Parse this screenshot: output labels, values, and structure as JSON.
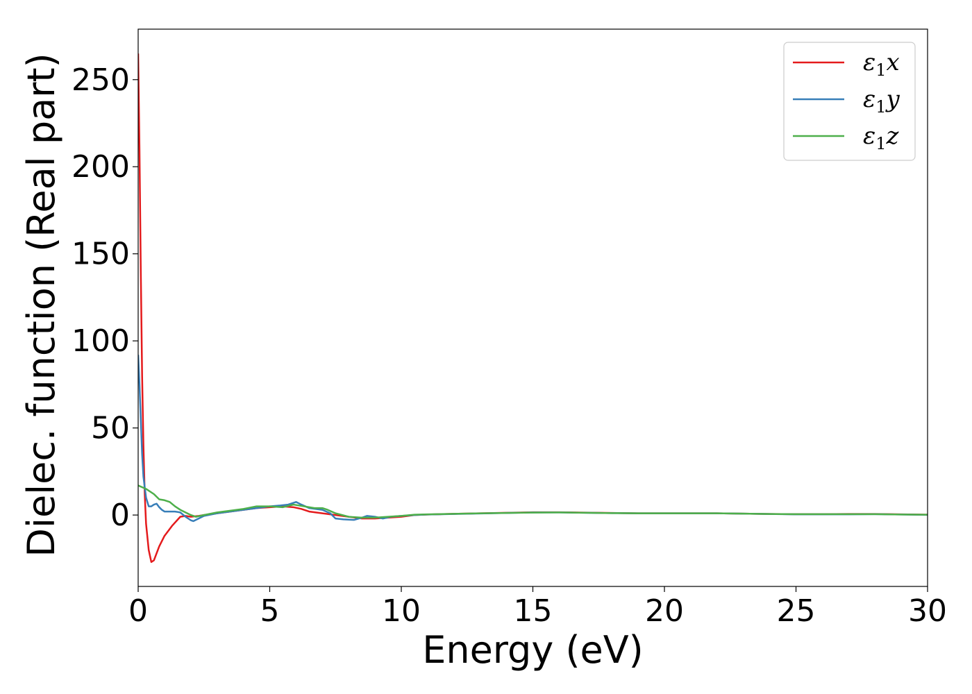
{
  "chart_data": {
    "type": "line",
    "xlabel": "Energy (eV)",
    "ylabel": "Dielec. function (Real part)",
    "xlim": [
      0,
      30
    ],
    "ylim": [
      -41,
      279
    ],
    "xticks": [
      0,
      5,
      10,
      15,
      20,
      25,
      30
    ],
    "yticks": [
      0,
      50,
      100,
      150,
      200,
      250
    ],
    "grid": false,
    "legend_position": "top-right",
    "series": [
      {
        "name": "ε1x",
        "legend_base": "ε",
        "legend_sub": "1",
        "legend_var": "x",
        "color": "#e41a1c",
        "points": [
          [
            0,
            265
          ],
          [
            0.05,
            210
          ],
          [
            0.1,
            140
          ],
          [
            0.15,
            80
          ],
          [
            0.2,
            40
          ],
          [
            0.25,
            12
          ],
          [
            0.3,
            -5
          ],
          [
            0.4,
            -20
          ],
          [
            0.5,
            -27
          ],
          [
            0.6,
            -26
          ],
          [
            0.8,
            -18
          ],
          [
            1.0,
            -12
          ],
          [
            1.3,
            -6
          ],
          [
            1.6,
            -1
          ],
          [
            1.8,
            -0.5
          ],
          [
            2.0,
            -1
          ],
          [
            2.3,
            -0.5
          ],
          [
            2.5,
            0
          ],
          [
            3,
            1
          ],
          [
            3.5,
            2
          ],
          [
            4,
            3
          ],
          [
            4.5,
            4
          ],
          [
            5,
            4.5
          ],
          [
            5.5,
            5
          ],
          [
            5.9,
            4.5
          ],
          [
            6.2,
            3.5
          ],
          [
            6.5,
            2
          ],
          [
            7,
            1
          ],
          [
            7.5,
            0
          ],
          [
            8,
            -1
          ],
          [
            8.5,
            -2
          ],
          [
            9,
            -2
          ],
          [
            9.5,
            -1.5
          ],
          [
            10,
            -1
          ],
          [
            10.5,
            0
          ],
          [
            11,
            0.3
          ],
          [
            12,
            0.7
          ],
          [
            13,
            1
          ],
          [
            14,
            1.3
          ],
          [
            15,
            1.6
          ],
          [
            16,
            1.6
          ],
          [
            17,
            1.4
          ],
          [
            18,
            1.2
          ],
          [
            19,
            1
          ],
          [
            20,
            1
          ],
          [
            21,
            1
          ],
          [
            22,
            1
          ],
          [
            23,
            0.8
          ],
          [
            24,
            0.6
          ],
          [
            25,
            0.5
          ],
          [
            26,
            0.5
          ],
          [
            27,
            0.6
          ],
          [
            28,
            0.6
          ],
          [
            29,
            0.4
          ],
          [
            30,
            0.2
          ]
        ]
      },
      {
        "name": "ε1y",
        "legend_base": "ε",
        "legend_sub": "1",
        "legend_var": "y",
        "color": "#377eb8",
        "points": [
          [
            0,
            92
          ],
          [
            0.05,
            75
          ],
          [
            0.1,
            55
          ],
          [
            0.15,
            35
          ],
          [
            0.2,
            22
          ],
          [
            0.3,
            10
          ],
          [
            0.4,
            5
          ],
          [
            0.5,
            5
          ],
          [
            0.6,
            6
          ],
          [
            0.7,
            6.5
          ],
          [
            0.8,
            4.5
          ],
          [
            0.9,
            3
          ],
          [
            1.0,
            2
          ],
          [
            1.2,
            2
          ],
          [
            1.4,
            2
          ],
          [
            1.6,
            1.5
          ],
          [
            1.8,
            -1
          ],
          [
            2.0,
            -3
          ],
          [
            2.1,
            -3.5
          ],
          [
            2.3,
            -2
          ],
          [
            2.5,
            -0.5
          ],
          [
            3,
            1
          ],
          [
            3.5,
            2
          ],
          [
            4,
            3
          ],
          [
            4.5,
            4
          ],
          [
            5,
            5
          ],
          [
            5.4,
            5.5
          ],
          [
            5.7,
            6
          ],
          [
            6,
            7.5
          ],
          [
            6.2,
            6
          ],
          [
            6.5,
            4
          ],
          [
            7,
            3
          ],
          [
            7.3,
            1
          ],
          [
            7.5,
            -2
          ],
          [
            7.8,
            -2.5
          ],
          [
            8.2,
            -2.8
          ],
          [
            8.5,
            -1.5
          ],
          [
            8.7,
            -0.5
          ],
          [
            9,
            -1
          ],
          [
            9.3,
            -2
          ],
          [
            9.6,
            -1
          ],
          [
            10,
            -0.5
          ],
          [
            10.5,
            0
          ],
          [
            11,
            0.3
          ],
          [
            12,
            0.6
          ],
          [
            13,
            0.9
          ],
          [
            14,
            1.2
          ],
          [
            15,
            1.5
          ],
          [
            16,
            1.5
          ],
          [
            17,
            1.3
          ],
          [
            18,
            1.1
          ],
          [
            19,
            1
          ],
          [
            20,
            1
          ],
          [
            21,
            1
          ],
          [
            22,
            1
          ],
          [
            23,
            0.8
          ],
          [
            24,
            0.6
          ],
          [
            25,
            0.4
          ],
          [
            26,
            0.4
          ],
          [
            27,
            0.4
          ],
          [
            28,
            0.5
          ],
          [
            29,
            0.3
          ],
          [
            30,
            0.1
          ]
        ]
      },
      {
        "name": "ε1z",
        "legend_base": "ε",
        "legend_sub": "1",
        "legend_var": "z",
        "color": "#4daf4a",
        "points": [
          [
            0,
            17
          ],
          [
            0.3,
            15
          ],
          [
            0.6,
            12
          ],
          [
            0.8,
            9
          ],
          [
            1.0,
            8.5
          ],
          [
            1.2,
            7.5
          ],
          [
            1.4,
            5
          ],
          [
            1.6,
            3
          ],
          [
            1.8,
            1.5
          ],
          [
            2.0,
            0
          ],
          [
            2.2,
            -1
          ],
          [
            2.5,
            0
          ],
          [
            3,
            1.5
          ],
          [
            3.5,
            2.5
          ],
          [
            4,
            3.5
          ],
          [
            4.5,
            5
          ],
          [
            5,
            5
          ],
          [
            5.5,
            4.5
          ],
          [
            5.9,
            6
          ],
          [
            6.3,
            5
          ],
          [
            6.7,
            4
          ],
          [
            7,
            4
          ],
          [
            7.2,
            3
          ],
          [
            7.5,
            1
          ],
          [
            8,
            -1
          ],
          [
            8.5,
            -1.5
          ],
          [
            9,
            -1.5
          ],
          [
            9.5,
            -1
          ],
          [
            10,
            -0.5
          ],
          [
            10.5,
            0.2
          ],
          [
            11,
            0.4
          ],
          [
            12,
            0.7
          ],
          [
            13,
            1
          ],
          [
            14,
            1.2
          ],
          [
            15,
            1.4
          ],
          [
            16,
            1.5
          ],
          [
            17,
            1.3
          ],
          [
            18,
            1.1
          ],
          [
            19,
            1
          ],
          [
            20,
            1
          ],
          [
            21,
            1
          ],
          [
            22,
            1
          ],
          [
            23,
            0.8
          ],
          [
            24,
            0.6
          ],
          [
            25,
            0.5
          ],
          [
            26,
            0.5
          ],
          [
            27,
            0.5
          ],
          [
            28,
            0.5
          ],
          [
            29,
            0.3
          ],
          [
            30,
            0.2
          ]
        ]
      }
    ]
  }
}
